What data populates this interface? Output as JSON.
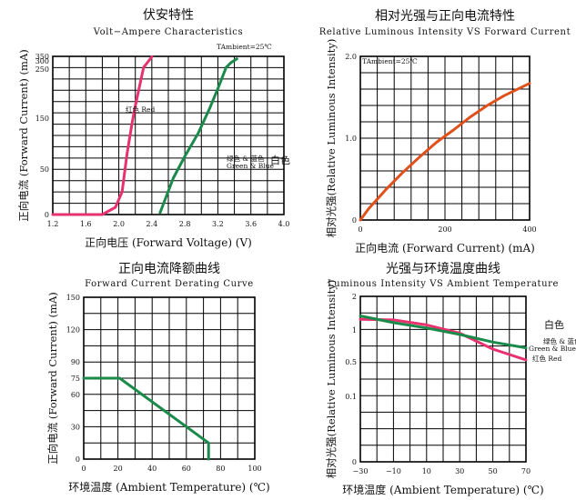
{
  "chart_data": [
    {
      "type": "line",
      "title": "伏安特性",
      "subtitle": "Volt−Ampere Characteristics",
      "xlabel": "正向电压 (Forward Voltage) (V)",
      "ylabel": "正向电流 (Forward Current) (mA)",
      "xlim": [
        1.2,
        4.0
      ],
      "ylim": [
        0,
        350
      ],
      "x_ticks": [
        1.2,
        1.6,
        2.0,
        2.4,
        2.8,
        3.2,
        3.6,
        4.0
      ],
      "x_tick_labels": [
        "1.2",
        "1.6",
        "2.0",
        "2.4",
        "2.8",
        "3.2",
        "3.6",
        "4.0"
      ],
      "y_ticks": [
        0,
        50,
        150,
        250,
        300,
        350
      ],
      "y_tick_labels": [
        "0",
        "50",
        "150",
        "250",
        "300",
        "350"
      ],
      "grid": true,
      "annotations": [
        "TAmbient=25℃",
        "红色 Red",
        "绿色 & 蓝色",
        "Green & Blue",
        "白色"
      ],
      "series": [
        {
          "name": "红色 Red",
          "color": "#e8326f",
          "x": [
            1.2,
            1.6,
            1.8,
            1.96,
            2.04,
            2.1,
            2.16,
            2.2,
            2.3,
            2.4
          ],
          "y": [
            0,
            0,
            0,
            8,
            25,
            80,
            140,
            175,
            260,
            345
          ]
        },
        {
          "name": "绿色 & 蓝色 Green & Blue 白色",
          "color": "#1a8a4a",
          "x": [
            2.5,
            2.66,
            2.8,
            2.96,
            3.1,
            3.2,
            3.3,
            3.36,
            3.43
          ],
          "y": [
            2,
            40,
            75,
            120,
            170,
            210,
            260,
            290,
            323
          ]
        }
      ]
    },
    {
      "type": "line",
      "title": "相对光强与正向电流特性",
      "subtitle": "Relative Luminous Intensity VS Forward Current",
      "xlabel": "正向电流 (Forward Current) (mA)",
      "ylabel": "相对光强(Relative Luminous Intensity)",
      "xlim": [
        0,
        400
      ],
      "ylim": [
        0,
        2.0
      ],
      "x_ticks": [
        0,
        200,
        400
      ],
      "x_tick_labels": [
        "0",
        "200",
        "400"
      ],
      "y_ticks": [
        0,
        1.0,
        2.0
      ],
      "y_tick_labels": [
        "0",
        "1.0",
        "2.0"
      ],
      "grid": true,
      "annotations": [
        "TAmbient=25℃"
      ],
      "series": [
        {
          "color": "#e0501a",
          "x": [
            0,
            20,
            60,
            100,
            140,
            180,
            220,
            260,
            300,
            340,
            380,
            400
          ],
          "y": [
            0,
            0.14,
            0.37,
            0.58,
            0.77,
            0.95,
            1.1,
            1.26,
            1.4,
            1.52,
            1.62,
            1.67
          ]
        }
      ]
    },
    {
      "type": "line",
      "title": "正向电流降额曲线",
      "subtitle": "Forward Current Derating Curve",
      "xlabel": "环境温度 (Ambient Temperature) (℃)",
      "ylabel": "正向电流 (Forward Current) (mA)",
      "xlim": [
        0,
        100
      ],
      "ylim": [
        0,
        150
      ],
      "x_ticks": [
        0,
        20,
        40,
        60,
        80,
        100
      ],
      "x_tick_labels": [
        "0",
        "20",
        "40",
        "60",
        "80",
        "100"
      ],
      "y_ticks": [
        0,
        30,
        60,
        75,
        90,
        120,
        150
      ],
      "y_tick_labels": [
        "0",
        "30",
        "60",
        "75",
        "90",
        "120",
        "150"
      ],
      "grid": true,
      "series": [
        {
          "color": "#1a8a4a",
          "x": [
            0,
            21,
            73,
            73
          ],
          "y": [
            75,
            75,
            15,
            0
          ]
        }
      ]
    },
    {
      "type": "line",
      "title": "光强与环境温度曲线",
      "subtitle": "Luminous Intensity VS Ambient Temperature",
      "xlabel": "环境温度 (Ambient Temperature) (℃)",
      "ylabel": "相对光强(Relative Luminous Intensity)",
      "xlim": [
        -30,
        70
      ],
      "ylim": [
        0,
        2
      ],
      "x_ticks": [
        -30,
        -10,
        10,
        30,
        50,
        70
      ],
      "x_tick_labels": [
        "−30",
        "−10",
        "10",
        "30",
        "50",
        "70"
      ],
      "y_ticks": [
        0,
        0.1,
        0.5,
        1,
        2
      ],
      "y_tick_labels": [
        "0",
        "0.1",
        "0.5",
        "1",
        "2"
      ],
      "grid": true,
      "annotations": [
        "白色",
        "绿色 & 蓝色",
        "Green & Blue",
        "红色 Red"
      ],
      "series": [
        {
          "name": "红色 Red",
          "color": "#e8326f",
          "x": [
            -30,
            -10,
            10,
            30,
            50,
            70
          ],
          "y": [
            1.32,
            1.3,
            1.15,
            0.95,
            0.7,
            0.53
          ]
        },
        {
          "name": "绿色 & 蓝色 Green & Blue 白色",
          "color": "#1a8a4a",
          "x": [
            -30,
            -10,
            10,
            30,
            50,
            70
          ],
          "y": [
            1.42,
            1.22,
            1.06,
            0.93,
            0.81,
            0.72
          ]
        }
      ]
    }
  ]
}
